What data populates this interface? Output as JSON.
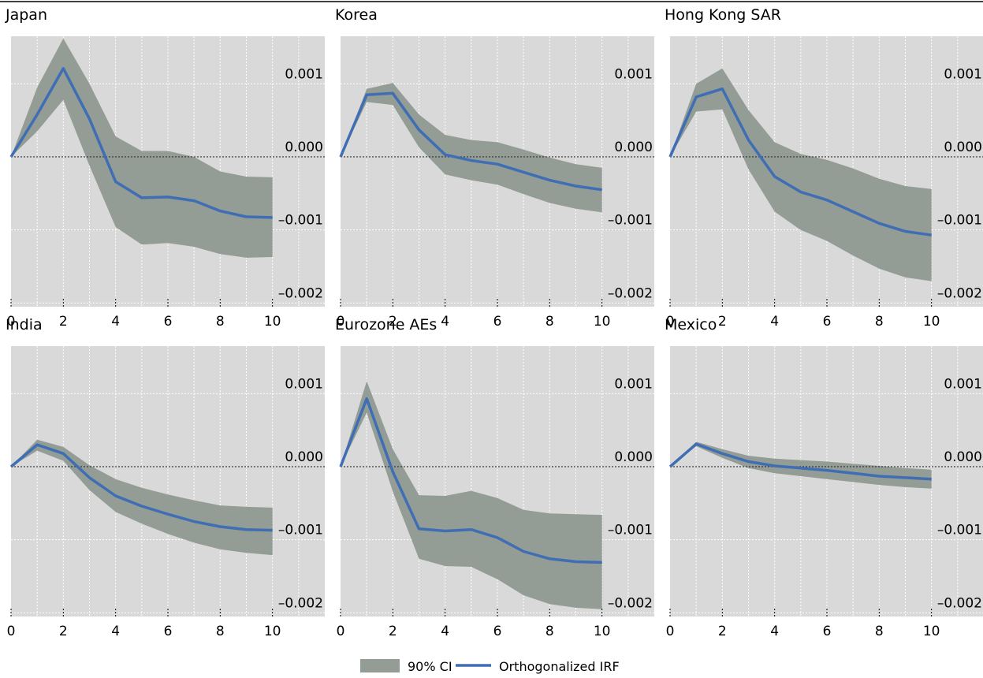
{
  "chart_data": {
    "type": "line",
    "x_ticks": [
      0,
      2,
      4,
      6,
      8,
      10
    ],
    "y_ticks": [
      0.001,
      0.0,
      -0.001,
      -0.002
    ],
    "y_tick_labels": [
      "0.001",
      "0.000",
      "–0.001",
      "–0.002"
    ],
    "xlim": [
      0,
      12
    ],
    "ylim": [
      -0.00205,
      0.00165
    ],
    "grid": true,
    "legend_position": "bottom-center",
    "legend": {
      "band_label": "90% CI",
      "line_label": "Orthogonalized IRF"
    },
    "colors": {
      "plot_background": "#d9d9d9",
      "band": "#939c95",
      "line": "#3f6eb4",
      "zero_line": "#333333",
      "grid": "#ffffff"
    },
    "x": [
      0,
      1,
      2,
      3,
      4,
      5,
      6,
      7,
      8,
      9,
      10
    ],
    "panels": [
      {
        "title": "Japan",
        "irf": [
          0,
          0.00058,
          0.00121,
          0.00052,
          -0.00034,
          -0.00056,
          -0.00055,
          -0.0006,
          -0.00074,
          -0.00082,
          -0.00083
        ],
        "ci_upper": [
          0,
          0.00095,
          0.00162,
          0.001,
          0.00028,
          8e-05,
          8e-05,
          0.0,
          -0.0002,
          -0.00027,
          -0.00028
        ],
        "ci_lower": [
          0,
          0.00035,
          0.00078,
          -0.00012,
          -0.00096,
          -0.0012,
          -0.00118,
          -0.00123,
          -0.00133,
          -0.00138,
          -0.00137
        ]
      },
      {
        "title": "Korea",
        "irf": [
          0,
          0.00085,
          0.00087,
          0.00037,
          3e-05,
          -5e-05,
          -0.0001,
          -0.00021,
          -0.00032,
          -0.0004,
          -0.00045
        ],
        "ci_upper": [
          0,
          0.00093,
          0.00101,
          0.00058,
          0.0003,
          0.00023,
          0.0002,
          0.0001,
          -1e-05,
          -0.0001,
          -0.00015
        ],
        "ci_lower": [
          0,
          0.00075,
          0.00071,
          0.00013,
          -0.00024,
          -0.00032,
          -0.00038,
          -0.00051,
          -0.00063,
          -0.00071,
          -0.00076
        ]
      },
      {
        "title": "Hong Kong SAR",
        "irf": [
          0,
          0.00082,
          0.00093,
          0.00023,
          -0.00027,
          -0.00048,
          -0.00059,
          -0.00075,
          -0.00091,
          -0.00102,
          -0.00107
        ],
        "ci_upper": [
          0,
          0.001,
          0.00121,
          0.00064,
          0.0002,
          4e-05,
          -4e-05,
          -0.00016,
          -0.0003,
          -0.0004,
          -0.00044
        ],
        "ci_lower": [
          0,
          0.00062,
          0.00065,
          -0.00017,
          -0.00075,
          -0.001,
          -0.00115,
          -0.00135,
          -0.00153,
          -0.00165,
          -0.0017
        ]
      },
      {
        "title": "India",
        "irf": [
          0,
          0.0003,
          0.00018,
          -0.00015,
          -0.0004,
          -0.00054,
          -0.00065,
          -0.00075,
          -0.00082,
          -0.00086,
          -0.00087
        ],
        "ci_upper": [
          0,
          0.00037,
          0.00027,
          2e-05,
          -0.00017,
          -0.00029,
          -0.00038,
          -0.00046,
          -0.00053,
          -0.00055,
          -0.00056
        ],
        "ci_lower": [
          0,
          0.00022,
          8e-05,
          -0.00032,
          -0.00062,
          -0.00078,
          -0.00092,
          -0.00104,
          -0.00113,
          -0.00118,
          -0.00121
        ]
      },
      {
        "title": "Eurozone AEs",
        "irf": [
          0,
          0.00093,
          -7e-05,
          -0.00085,
          -0.00088,
          -0.00086,
          -0.00097,
          -0.00116,
          -0.00126,
          -0.0013,
          -0.00131
        ],
        "ci_upper": [
          0,
          0.00117,
          0.00024,
          -0.00039,
          -0.0004,
          -0.00033,
          -0.00043,
          -0.00059,
          -0.00064,
          -0.00065,
          -0.00066
        ],
        "ci_lower": [
          0,
          0.00074,
          -0.00034,
          -0.00126,
          -0.00136,
          -0.00137,
          -0.00154,
          -0.00176,
          -0.00188,
          -0.00193,
          -0.00195
        ]
      },
      {
        "title": "Mexico",
        "irf": [
          0,
          0.00031,
          0.00018,
          7e-05,
          1e-05,
          -2e-05,
          -5e-05,
          -9e-05,
          -0.00013,
          -0.00015,
          -0.00017
        ],
        "ci_upper": [
          0,
          0.00034,
          0.00024,
          0.00015,
          0.00011,
          9e-05,
          7e-05,
          4e-05,
          1e-05,
          -2e-05,
          -4e-05
        ],
        "ci_lower": [
          0,
          0.00028,
          0.00012,
          -2e-05,
          -9e-05,
          -0.00013,
          -0.00017,
          -0.00021,
          -0.00025,
          -0.00028,
          -0.0003
        ]
      }
    ]
  }
}
